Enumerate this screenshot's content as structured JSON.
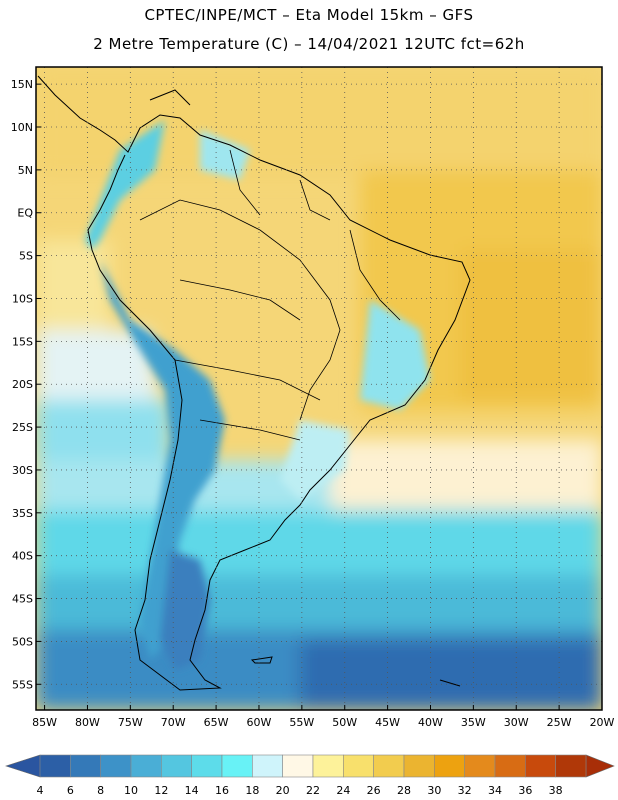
{
  "header": {
    "line1": "CPTEC/INPE/MCT –  Eta Model 15km – GFS",
    "line2": "2 Metre Temperature (C) – 14/04/2021 12UTC fct=62h"
  },
  "lat_ticks": [
    {
      "value": 15,
      "label": "15N"
    },
    {
      "value": 10,
      "label": "10N"
    },
    {
      "value": 5,
      "label": "5N"
    },
    {
      "value": 0,
      "label": "EQ"
    },
    {
      "value": -5,
      "label": "5S"
    },
    {
      "value": -10,
      "label": "10S"
    },
    {
      "value": -15,
      "label": "15S"
    },
    {
      "value": -20,
      "label": "20S"
    },
    {
      "value": -25,
      "label": "25S"
    },
    {
      "value": -30,
      "label": "30S"
    },
    {
      "value": -35,
      "label": "35S"
    },
    {
      "value": -40,
      "label": "40S"
    },
    {
      "value": -45,
      "label": "45S"
    },
    {
      "value": -50,
      "label": "50S"
    },
    {
      "value": -55,
      "label": "55S"
    }
  ],
  "lon_ticks": [
    {
      "value": -85,
      "label": "85W"
    },
    {
      "value": -80,
      "label": "80W"
    },
    {
      "value": -75,
      "label": "75W"
    },
    {
      "value": -70,
      "label": "70W"
    },
    {
      "value": -65,
      "label": "65W"
    },
    {
      "value": -60,
      "label": "60W"
    },
    {
      "value": -55,
      "label": "55W"
    },
    {
      "value": -50,
      "label": "50W"
    },
    {
      "value": -45,
      "label": "45W"
    },
    {
      "value": -40,
      "label": "40W"
    },
    {
      "value": -35,
      "label": "35W"
    },
    {
      "value": -30,
      "label": "30W"
    },
    {
      "value": -25,
      "label": "25W"
    },
    {
      "value": -20,
      "label": "20W"
    }
  ],
  "map_extent": {
    "lon_min": -86,
    "lon_max": -20,
    "lat_min": -58,
    "lat_max": 17
  },
  "colorbar": {
    "labels": [
      "4",
      "6",
      "8",
      "10",
      "12",
      "14",
      "16",
      "18",
      "20",
      "22",
      "24",
      "26",
      "28",
      "30",
      "32",
      "34",
      "36",
      "38"
    ],
    "colors": [
      "#2c5fa6",
      "#3479b8",
      "#3d92c8",
      "#4aaed6",
      "#54c6e0",
      "#5ddcea",
      "#68f2f6",
      "#cff4fb",
      "#fff8e6",
      "#fdf29a",
      "#f8e06c",
      "#f2cc4e",
      "#ebb430",
      "#eda210",
      "#e48a1c",
      "#d86c14",
      "#c84a0c",
      "#b03808"
    ],
    "left_arrow_color": "#2a55a0",
    "right_arrow_color": "#a82e08"
  },
  "chart_data": {
    "type": "heatmap",
    "title": "2 Metre Temperature (C)",
    "units": "C",
    "x_range": [
      -86,
      -20
    ],
    "y_range": [
      -58,
      17
    ],
    "legend_position": "bottom",
    "contour_levels": [
      4,
      6,
      8,
      10,
      12,
      14,
      16,
      18,
      20,
      22,
      24,
      26,
      28,
      30,
      32,
      34,
      36,
      38
    ]
  }
}
